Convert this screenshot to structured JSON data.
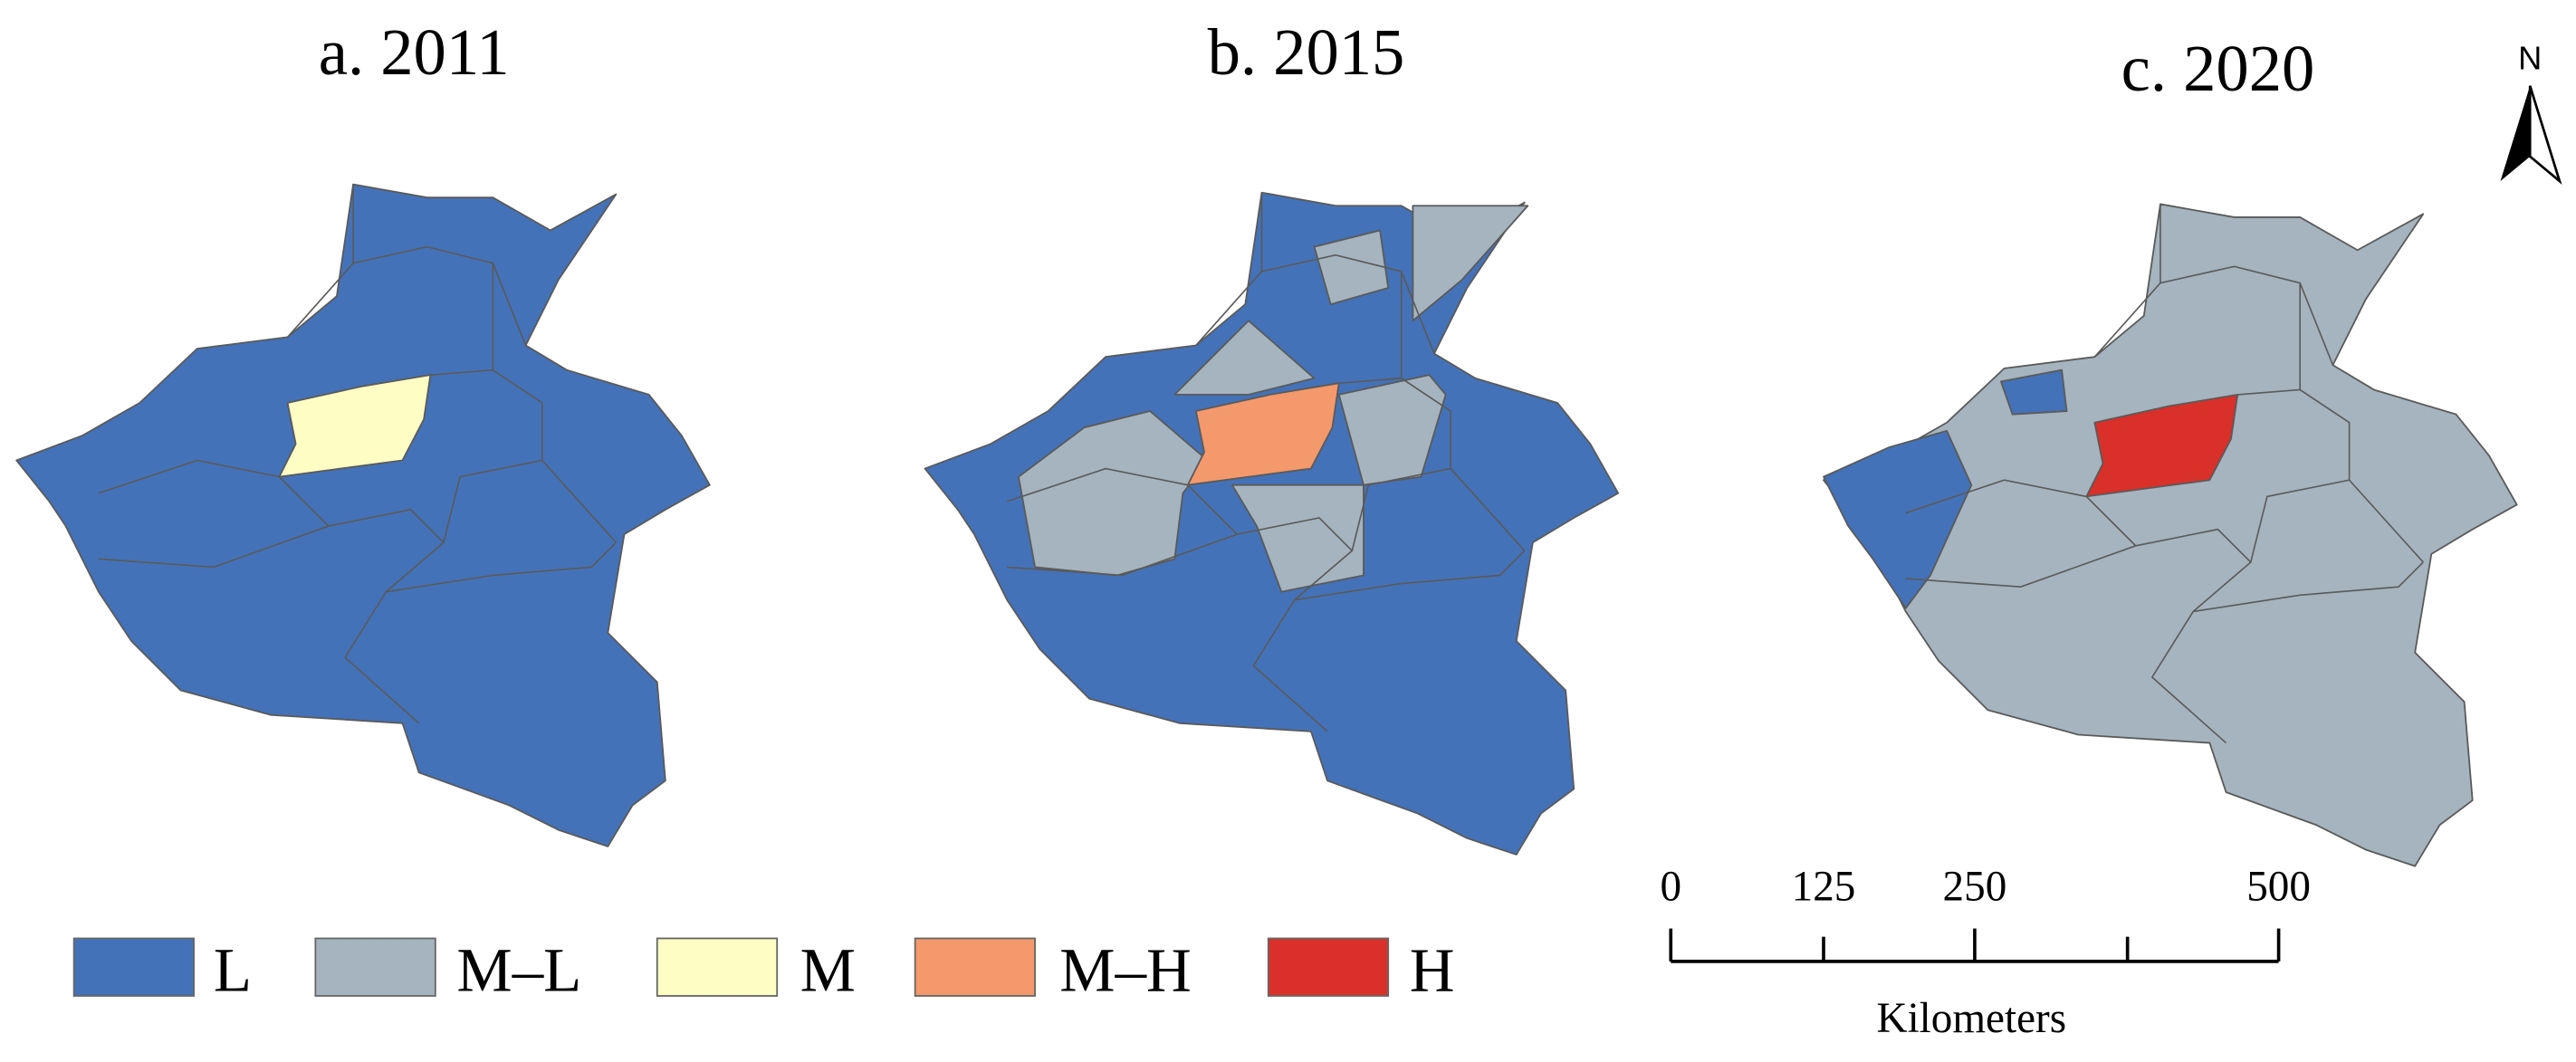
{
  "maps": [
    {
      "title": "a. 2011"
    },
    {
      "title": "b. 2015"
    },
    {
      "title": "c. 2020"
    }
  ],
  "legend": [
    {
      "label": "L",
      "color": "#4472b8"
    },
    {
      "label": "M–L",
      "color": "#a5b4be"
    },
    {
      "label": "M",
      "color": "#fefec4"
    },
    {
      "label": "M–H",
      "color": "#f4996b"
    },
    {
      "label": "H",
      "color": "#d9302a"
    }
  ],
  "north": "N",
  "scale_bar": {
    "labels": [
      "0",
      "125",
      "250",
      "500"
    ],
    "unit": "Kilometers"
  }
}
